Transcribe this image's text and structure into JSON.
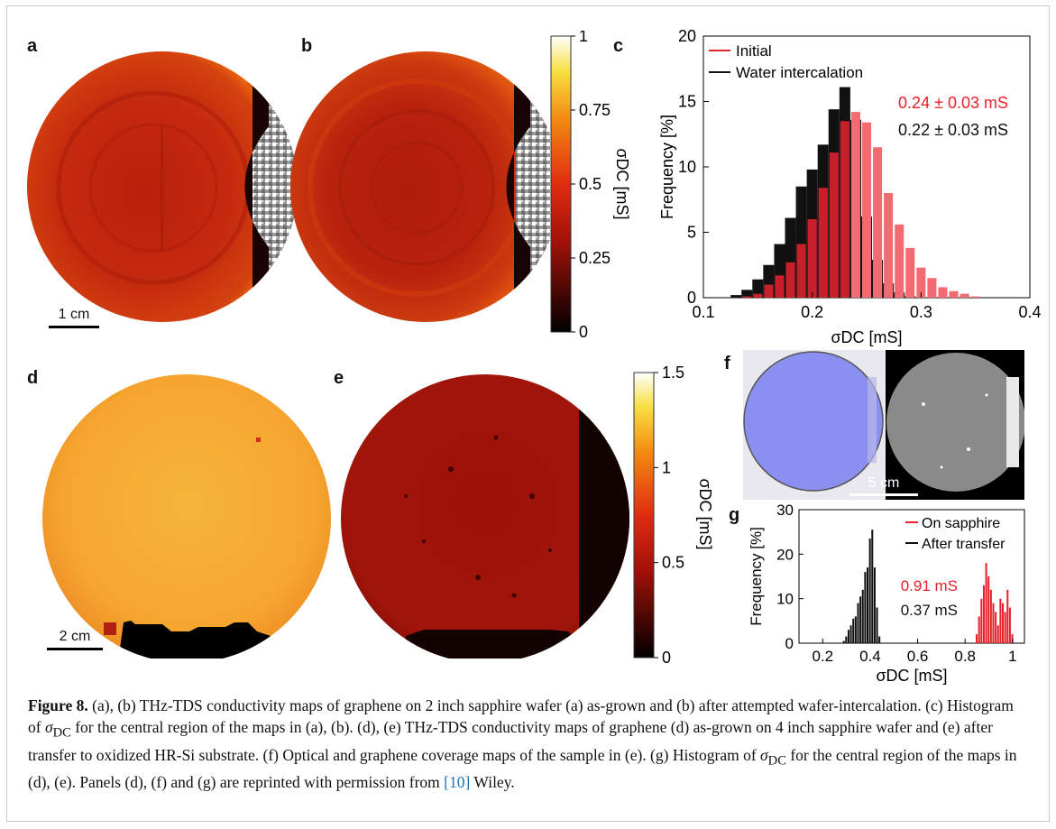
{
  "panel_labels": {
    "a": "a",
    "b": "b",
    "c": "c",
    "d": "d",
    "e": "e",
    "f": "f",
    "g": "g"
  },
  "scalebars": {
    "top": "1 cm",
    "bottom": "2 cm",
    "optical": "5 cm"
  },
  "colorbar_top": {
    "ticks": [
      "1",
      "0.75",
      "0.5",
      "0.25",
      "0"
    ],
    "label": "σDC [mS]"
  },
  "colorbar_bottom": {
    "ticks": [
      "1.5",
      "1",
      "0.5",
      "0"
    ],
    "label": "σDC [mS]"
  },
  "colors": {
    "red": "#e8202a",
    "lightred": "#f26b72",
    "black": "#111111",
    "sapphire_blue": "#8a8ff0"
  },
  "chart_data": [
    {
      "type": "bar",
      "panel": "c",
      "xlabel": "σDC [mS]",
      "ylabel": "Frequency [%]",
      "xlim": [
        0.1,
        0.4
      ],
      "ylim": [
        0,
        20
      ],
      "xticks": [
        "0.1",
        "0.2",
        "0.3",
        "0.4"
      ],
      "yticks": [
        "0",
        "5",
        "10",
        "15",
        "20"
      ],
      "legend_position": "top-left",
      "bin_width": 0.01,
      "x": [
        0.13,
        0.14,
        0.15,
        0.16,
        0.17,
        0.18,
        0.19,
        0.2,
        0.21,
        0.22,
        0.23,
        0.24,
        0.25,
        0.26,
        0.27,
        0.28,
        0.29,
        0.3,
        0.31,
        0.32,
        0.33,
        0.34,
        0.35
      ],
      "series": [
        {
          "name": "Water intercalation",
          "color": "#111111",
          "values": [
            0.2,
            0.6,
            1.4,
            2.5,
            4.1,
            6.1,
            8.5,
            9.8,
            11.7,
            14.4,
            16.1,
            13.6,
            6.2,
            2.9,
            1.1,
            0.4,
            0.1,
            0,
            0,
            0,
            0,
            0,
            0
          ]
        },
        {
          "name": "Initial",
          "color": "#e8202a",
          "values": [
            0,
            0.1,
            0.3,
            1.0,
            1.7,
            2.7,
            4.1,
            6.0,
            8.4,
            11.1,
            13.5,
            14.2,
            13.4,
            11.5,
            8.0,
            5.6,
            3.8,
            2.3,
            1.5,
            0.8,
            0.5,
            0.3,
            0.1
          ]
        }
      ],
      "annotations": [
        {
          "text": "0.24 ± 0.03 mS",
          "color": "#e8202a"
        },
        {
          "text": "0.22 ± 0.03 mS",
          "color": "#111111"
        }
      ]
    },
    {
      "type": "bar",
      "panel": "g",
      "xlabel": "σDC [mS]",
      "ylabel": "Frequency [%]",
      "xlim": [
        0.1,
        1.05
      ],
      "ylim": [
        0,
        30
      ],
      "xticks": [
        "0.2",
        "0.4",
        "0.6",
        "0.8",
        "1"
      ],
      "yticks": [
        "0",
        "10",
        "20",
        "30"
      ],
      "legend_position": "top-right",
      "series": [
        {
          "name": "After transfer",
          "color": "#111111",
          "x": [
            0.29,
            0.3,
            0.31,
            0.32,
            0.33,
            0.34,
            0.35,
            0.36,
            0.37,
            0.38,
            0.39,
            0.4,
            0.41,
            0.42,
            0.43,
            0.44
          ],
          "values": [
            0.5,
            1.5,
            3,
            4,
            5.5,
            6,
            9,
            10.5,
            12,
            16,
            17,
            23.5,
            25.5,
            17,
            8,
            1.5
          ]
        },
        {
          "name": "On sapphire",
          "color": "#e8202a",
          "x": [
            0.85,
            0.86,
            0.87,
            0.88,
            0.89,
            0.9,
            0.91,
            0.92,
            0.93,
            0.94,
            0.95,
            0.96,
            0.97,
            0.98,
            0.99,
            1.0
          ],
          "values": [
            2,
            6,
            10,
            13,
            18,
            15,
            12,
            9,
            7,
            4,
            10,
            9,
            7,
            12,
            8,
            2
          ]
        }
      ],
      "annotations": [
        {
          "text": "0.91 mS",
          "color": "#e8202a"
        },
        {
          "text": "0.37 mS",
          "color": "#111111"
        }
      ]
    }
  ],
  "caption": {
    "figure_label": "Figure 8.",
    "part1": " (a), (b) THz-TDS conductivity maps of graphene on 2 inch sapphire wafer (a) as-grown and (b) after attempted wafer-intercalation. (c) Histogram of ",
    "sym1": "σ",
    "sub1": "DC",
    "part2": " for the central region of the maps in (a), (b). (d), (e) THz-TDS conductivity maps of graphene (d) as-grown on 4 inch sapphire wafer and (e) after transfer to oxidized HR-Si substrate. (f) Optical and graphene coverage maps of the sample in (e). (g) Histogram of ",
    "sym2": "σ",
    "sub2": "DC",
    "part3": " for the central region of the maps in (d), (e). Panels (d), (f) and (g) are reprinted with permission from ",
    "ref": "[10]",
    "part4": " Wiley."
  }
}
